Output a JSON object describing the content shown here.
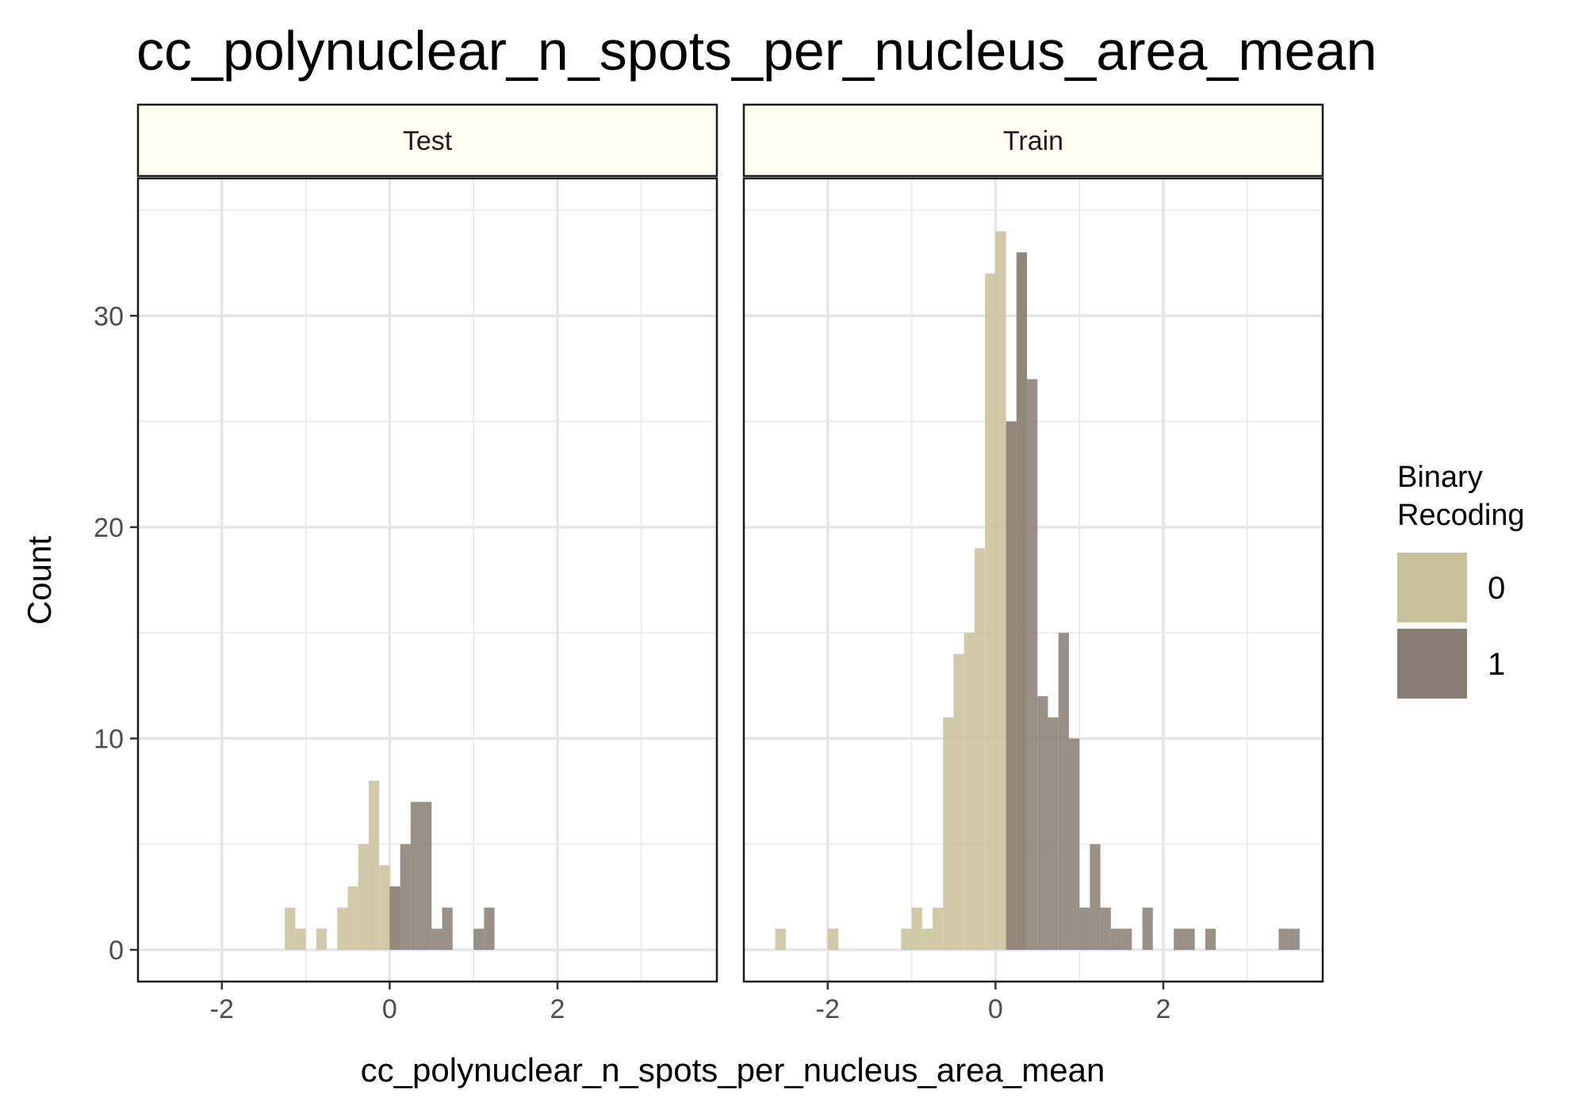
{
  "chart_data": {
    "type": "histogram",
    "title": "cc_polynuclear_n_spots_per_nucleus_area_mean",
    "xlabel": "cc_polynuclear_n_spots_per_nucleus_area_mean",
    "ylabel": "Count",
    "xlim": [
      -3.0,
      3.9
    ],
    "ylim": [
      -1.5,
      36.5
    ],
    "x_ticks": [
      -2,
      0,
      2
    ],
    "x_tick_labels": [
      "-2",
      "0",
      "2"
    ],
    "y_ticks": [
      0,
      10,
      20,
      30
    ],
    "y_tick_labels": [
      "0",
      "10",
      "20",
      "30"
    ],
    "grid": true,
    "bin_width": 0.125,
    "legend": {
      "title_lines": [
        "Binary",
        "Recoding"
      ],
      "position": "right",
      "entries": [
        {
          "label": "0",
          "color": "#c8c19a"
        },
        {
          "label": "1",
          "color": "#877d72"
        }
      ]
    },
    "facets": [
      {
        "label": "Test",
        "series": [
          {
            "name": "0",
            "color": "#c8c19a",
            "bins": [
              [
                -1.25,
                2
              ],
              [
                -1.125,
                1
              ],
              [
                -0.875,
                1
              ],
              [
                -0.625,
                2
              ],
              [
                -0.5,
                3
              ],
              [
                -0.375,
                5
              ],
              [
                -0.25,
                8
              ],
              [
                -0.125,
                4
              ],
              [
                0.0,
                3
              ]
            ]
          },
          {
            "name": "1",
            "color": "#877d72",
            "bins": [
              [
                0.0,
                3
              ],
              [
                0.125,
                5
              ],
              [
                0.25,
                7
              ],
              [
                0.375,
                7
              ],
              [
                0.5,
                1
              ],
              [
                0.625,
                2
              ],
              [
                1.0,
                1
              ],
              [
                1.125,
                2
              ]
            ]
          }
        ]
      },
      {
        "label": "Train",
        "series": [
          {
            "name": "0",
            "color": "#c8c19a",
            "bins": [
              [
                -2.625,
                1
              ],
              [
                -2.0,
                1
              ],
              [
                -1.125,
                1
              ],
              [
                -1.0,
                2
              ],
              [
                -0.875,
                1
              ],
              [
                -0.75,
                2
              ],
              [
                -0.625,
                11
              ],
              [
                -0.5,
                14
              ],
              [
                -0.375,
                15
              ],
              [
                -0.25,
                19
              ],
              [
                -0.125,
                32
              ],
              [
                0.0,
                34
              ],
              [
                0.125,
                25
              ],
              [
                0.25,
                33
              ]
            ]
          },
          {
            "name": "1",
            "color": "#877d72",
            "bins": [
              [
                0.125,
                25
              ],
              [
                0.25,
                33
              ],
              [
                0.375,
                27
              ],
              [
                0.5,
                12
              ],
              [
                0.625,
                11
              ],
              [
                0.75,
                15
              ],
              [
                0.875,
                10
              ],
              [
                1.0,
                2
              ],
              [
                1.125,
                5
              ],
              [
                1.25,
                2
              ],
              [
                1.375,
                1
              ],
              [
                1.5,
                1
              ],
              [
                1.75,
                2
              ],
              [
                2.125,
                1
              ],
              [
                2.25,
                1
              ],
              [
                2.5,
                1
              ],
              [
                3.375,
                1
              ],
              [
                3.5,
                1
              ]
            ]
          }
        ]
      }
    ]
  }
}
